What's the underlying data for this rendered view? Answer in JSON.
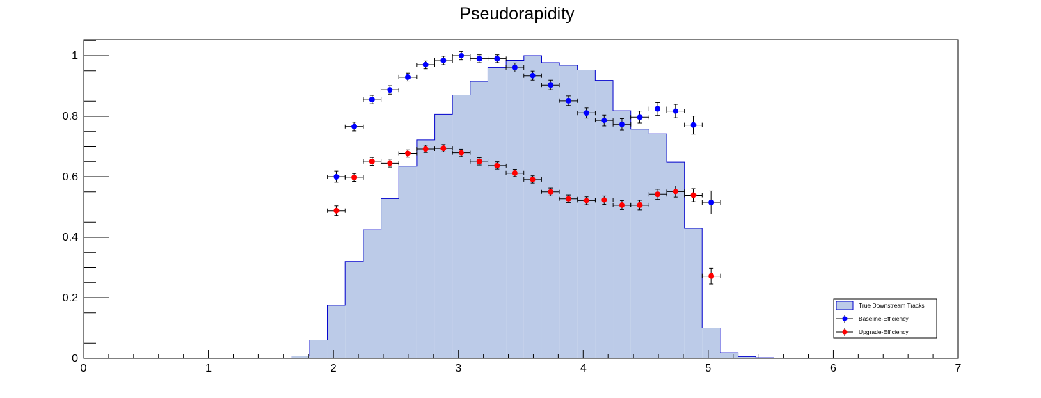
{
  "chart_data": {
    "type": "histogram",
    "title": "Pseudorapidity",
    "xlabel": "",
    "ylabel": "",
    "xlim": [
      0,
      7
    ],
    "ylim": [
      0,
      1.05
    ],
    "x_ticks": [
      "0",
      "1",
      "2",
      "3",
      "4",
      "5",
      "6",
      "7"
    ],
    "y_ticks": [
      "0",
      "0.2",
      "0.4",
      "0.6",
      "0.8",
      "1"
    ],
    "grid": false,
    "legend_position": "bottom-right",
    "histogram": {
      "name": "True Downstream Tracks",
      "bin_width": 0.1429,
      "bin_edges": [
        1.667,
        1.81,
        1.952,
        2.095,
        2.238,
        2.381,
        2.524,
        2.667,
        2.81,
        2.952,
        3.095,
        3.238,
        3.381,
        3.524,
        3.667,
        3.81,
        3.952,
        4.095,
        4.238,
        4.381,
        4.524,
        4.667,
        4.81,
        4.952,
        5.095,
        5.238,
        5.381,
        5.524
      ],
      "values": [
        0.008,
        0.061,
        0.175,
        0.32,
        0.425,
        0.528,
        0.635,
        0.722,
        0.806,
        0.87,
        0.915,
        0.96,
        0.985,
        1.0,
        0.977,
        0.968,
        0.953,
        0.918,
        0.818,
        0.757,
        0.742,
        0.648,
        0.43,
        0.1,
        0.018,
        0.006,
        0.002
      ],
      "fill_color": "#bccbe8",
      "line_color": "#0000cc"
    },
    "series": [
      {
        "name": "Baseline-Efficiency",
        "color": "#0000ff",
        "x": [
          2.024,
          2.167,
          2.31,
          2.452,
          2.595,
          2.738,
          2.881,
          3.024,
          3.167,
          3.31,
          3.452,
          3.595,
          3.738,
          3.881,
          4.024,
          4.167,
          4.31,
          4.452,
          4.595,
          4.738,
          4.881,
          5.024
        ],
        "y": [
          0.6,
          0.766,
          0.855,
          0.887,
          0.929,
          0.97,
          0.984,
          1.0,
          0.99,
          0.99,
          0.961,
          0.934,
          0.903,
          0.851,
          0.811,
          0.786,
          0.773,
          0.797,
          0.824,
          0.817,
          0.771,
          0.515
        ],
        "yerr": [
          0.018,
          0.014,
          0.014,
          0.014,
          0.013,
          0.013,
          0.014,
          0.013,
          0.013,
          0.013,
          0.015,
          0.015,
          0.016,
          0.016,
          0.017,
          0.018,
          0.019,
          0.02,
          0.021,
          0.022,
          0.03,
          0.038
        ]
      },
      {
        "name": "Upgrade-Efficiency",
        "color": "#ff0000",
        "x": [
          2.024,
          2.167,
          2.31,
          2.452,
          2.595,
          2.738,
          2.881,
          3.024,
          3.167,
          3.31,
          3.452,
          3.595,
          3.738,
          3.881,
          4.024,
          4.167,
          4.31,
          4.452,
          4.595,
          4.738,
          4.881,
          5.024
        ],
        "y": [
          0.488,
          0.598,
          0.651,
          0.645,
          0.677,
          0.692,
          0.694,
          0.679,
          0.651,
          0.637,
          0.612,
          0.591,
          0.55,
          0.527,
          0.521,
          0.523,
          0.506,
          0.506,
          0.542,
          0.551,
          0.539,
          0.272
        ],
        "yerr": [
          0.016,
          0.013,
          0.013,
          0.013,
          0.012,
          0.012,
          0.012,
          0.012,
          0.012,
          0.012,
          0.012,
          0.012,
          0.013,
          0.013,
          0.013,
          0.014,
          0.015,
          0.016,
          0.017,
          0.018,
          0.022,
          0.026
        ]
      }
    ]
  }
}
